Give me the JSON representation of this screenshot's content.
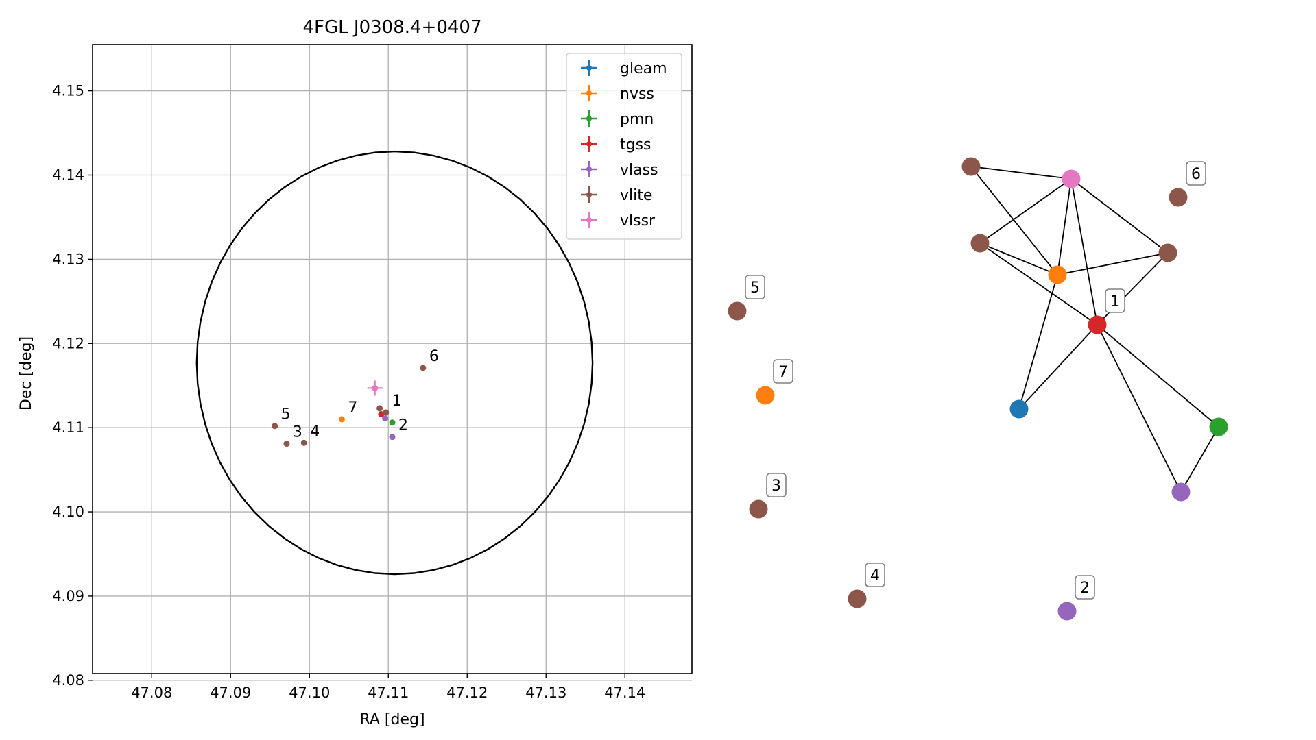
{
  "colors": {
    "gleam": "#1f77b4",
    "nvss": "#ff7f0e",
    "pmn": "#2ca02c",
    "tgss": "#d62728",
    "vlass": "#9467bd",
    "vlite": "#8c564b",
    "vlssr": "#e377c2",
    "grid": "#b0b0b0",
    "circle": "#000000"
  },
  "chart_data": [
    {
      "type": "scatter",
      "title": "4FGL J0308.4+0407",
      "xlabel": "RA [deg]",
      "ylabel": "Dec [deg]",
      "xlim": [
        47.0725,
        47.1485
      ],
      "ylim": [
        4.0808,
        4.1555
      ],
      "xticks": [
        47.08,
        47.09,
        47.1,
        47.11,
        47.12,
        47.13,
        47.14
      ],
      "xtick_labels": [
        "47.08",
        "47.09",
        "47.10",
        "47.11",
        "47.12",
        "47.13",
        "47.14"
      ],
      "yticks": [
        4.08,
        4.09,
        4.1,
        4.11,
        4.12,
        4.13,
        4.14,
        4.15
      ],
      "ytick_labels": [
        "4.08",
        "4.09",
        "4.10",
        "4.11",
        "4.12",
        "4.13",
        "4.14",
        "4.15"
      ],
      "grid": true,
      "legend_position": "top-right",
      "error_circle": {
        "ra": 47.1108,
        "dec": 4.1177,
        "radius": 0.0251
      },
      "series": [
        {
          "name": "gleam",
          "color_key": "gleam",
          "points": []
        },
        {
          "name": "nvss",
          "color_key": "nvss",
          "points": [
            {
              "x": 47.1041,
              "y": 4.111,
              "label": "7"
            }
          ]
        },
        {
          "name": "pmn",
          "color_key": "pmn",
          "points": [
            {
              "x": 47.1105,
              "y": 4.1106,
              "label": ""
            }
          ]
        },
        {
          "name": "tgss",
          "color_key": "tgss",
          "points": [
            {
              "x": 47.1091,
              "y": 4.1116,
              "label": ""
            }
          ]
        },
        {
          "name": "vlass",
          "color_key": "vlass",
          "points": [
            {
              "x": 47.1096,
              "y": 4.1111,
              "label": ""
            },
            {
              "x": 47.1105,
              "y": 4.1089,
              "label": "2"
            }
          ]
        },
        {
          "name": "vlite",
          "color_key": "vlite",
          "points": [
            {
              "x": 47.0956,
              "y": 4.1102,
              "label": "5"
            },
            {
              "x": 47.0971,
              "y": 4.1081,
              "label": "3"
            },
            {
              "x": 47.0993,
              "y": 4.1082,
              "label": "4"
            },
            {
              "x": 47.1089,
              "y": 4.1123,
              "label": ""
            },
            {
              "x": 47.1097,
              "y": 4.1118,
              "label": "1"
            },
            {
              "x": 47.1144,
              "y": 4.1171,
              "label": "6"
            }
          ]
        },
        {
          "name": "vlssr",
          "color_key": "vlssr",
          "points": [
            {
              "x": 47.1083,
              "y": 4.1147,
              "label": ""
            }
          ]
        }
      ]
    }
  ],
  "graph": {
    "nodes": [
      {
        "id": "vlite_a",
        "color_key": "vlite",
        "label": ""
      },
      {
        "id": "vlssr",
        "color_key": "vlssr",
        "label": ""
      },
      {
        "id": "vlite_6",
        "color_key": "vlite",
        "label": "6"
      },
      {
        "id": "vlite_b",
        "color_key": "vlite",
        "label": ""
      },
      {
        "id": "vlite_c",
        "color_key": "vlite",
        "label": ""
      },
      {
        "id": "nvss",
        "color_key": "nvss",
        "label": ""
      },
      {
        "id": "tgss",
        "color_key": "tgss",
        "label": "1"
      },
      {
        "id": "vlite_5",
        "color_key": "vlite",
        "label": "5"
      },
      {
        "id": "nvss_7",
        "color_key": "nvss",
        "label": "7"
      },
      {
        "id": "gleam",
        "color_key": "gleam",
        "label": ""
      },
      {
        "id": "pmn",
        "color_key": "pmn",
        "label": ""
      },
      {
        "id": "vlass",
        "color_key": "vlass",
        "label": ""
      },
      {
        "id": "vlite_3",
        "color_key": "vlite",
        "label": "3"
      },
      {
        "id": "vlite_4",
        "color_key": "vlite",
        "label": "4"
      },
      {
        "id": "vlass_2",
        "color_key": "vlass",
        "label": "2"
      }
    ],
    "edges": [
      [
        "vlite_a",
        "vlssr"
      ],
      [
        "vlite_a",
        "nvss"
      ],
      [
        "vlssr",
        "vlite_b"
      ],
      [
        "vlssr",
        "nvss"
      ],
      [
        "vlssr",
        "tgss"
      ],
      [
        "vlssr",
        "vlite_c"
      ],
      [
        "vlite_b",
        "nvss"
      ],
      [
        "vlite_b",
        "tgss"
      ],
      [
        "nvss",
        "vlite_c"
      ],
      [
        "nvss",
        "gleam"
      ],
      [
        "vlite_c",
        "tgss"
      ],
      [
        "tgss",
        "gleam"
      ],
      [
        "tgss",
        "pmn"
      ],
      [
        "tgss",
        "vlass"
      ],
      [
        "pmn",
        "vlass"
      ]
    ]
  }
}
